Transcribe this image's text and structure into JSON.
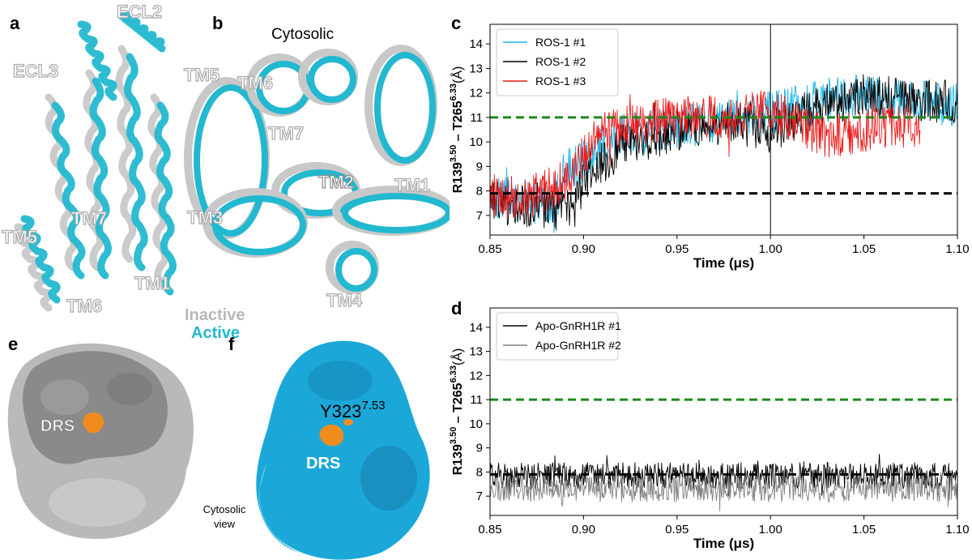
{
  "panels": {
    "a": {
      "label": "a",
      "labels": [
        "ECL2",
        "ECL3",
        "TM7",
        "TM5",
        "TM1",
        "TM6"
      ]
    },
    "b": {
      "label": "b",
      "title": "Cytosolic",
      "labels": [
        "TM5",
        "TM6",
        "TM7",
        "TM2",
        "TM1",
        "TM3",
        "TM4"
      ]
    },
    "legend": {
      "inactive": "Inactive",
      "active": "Active"
    },
    "e": {
      "label": "e",
      "site": "DRS"
    },
    "f": {
      "label": "f",
      "site": "DRS",
      "residue": "Y323",
      "residue_sup": "7.53"
    },
    "view_note": [
      "Cytosolic",
      "view"
    ],
    "c": {
      "label": "c"
    },
    "d": {
      "label": "d"
    }
  },
  "colors": {
    "active": "#22b8d0",
    "inactive": "#c8c8c8",
    "ros1_1": "#1ab6ea",
    "ros1_2": "#000000",
    "ros1_3": "#ee1c1c",
    "apo1": "#000000",
    "apo2": "#808080",
    "threshold_green": "#1a8a1a",
    "drs_orange": "#f08c1e",
    "surface_blue": "#1ba8d8",
    "surface_gray": "#8a8a8a"
  },
  "chart_data": [
    {
      "panel": "c",
      "type": "line",
      "xlabel": "Time (μs)",
      "ylabel": "R139",
      "ylabel_sup1": "3.50",
      "ylabel_mid": " – T265",
      "ylabel_sup2": "6.33",
      "ylabel_unit": "(Å)",
      "xlim": [
        0.85,
        1.1
      ],
      "ylim": [
        6.2,
        14.8
      ],
      "xticks": [
        0.85,
        0.9,
        0.95,
        1.0,
        1.05,
        1.1
      ],
      "xtick_labels": [
        "0.85",
        "0.90",
        "0.95",
        "1.00",
        "1.05",
        "1.10"
      ],
      "yticks": [
        7,
        8,
        9,
        10,
        11,
        12,
        13,
        14
      ],
      "hlines": [
        {
          "y": 11,
          "color": "green",
          "style": "dashed"
        },
        {
          "y": 7.9,
          "color": "black",
          "style": "dashed"
        }
      ],
      "vlines": [
        {
          "x": 1.0,
          "color": "black"
        }
      ],
      "legend_position": "top-left",
      "series": [
        {
          "name": "ROS-1 #1",
          "color": "#1ab6ea",
          "x": [
            0.85,
            0.87,
            0.885,
            0.89,
            0.9,
            0.92,
            0.95,
            0.98,
            1.0,
            1.02,
            1.05,
            1.07,
            1.1
          ],
          "y": [
            7.8,
            7.5,
            7.5,
            8.8,
            9.2,
            10.3,
            10.6,
            11.0,
            11.2,
            11.5,
            12.0,
            11.7,
            11.5
          ],
          "noise": 0.9
        },
        {
          "name": "ROS-1 #2",
          "color": "#000000",
          "x": [
            0.85,
            0.87,
            0.895,
            0.9,
            0.92,
            0.95,
            0.98,
            1.0,
            1.02,
            1.05,
            1.07,
            1.1
          ],
          "y": [
            7.6,
            7.4,
            7.2,
            8.5,
            9.8,
            10.5,
            10.8,
            10.4,
            11.3,
            11.8,
            11.8,
            11.6
          ],
          "noise": 0.9
        },
        {
          "name": "ROS-1 #3",
          "color": "#ee1c1c",
          "x": [
            0.85,
            0.87,
            0.89,
            0.91,
            0.95,
            0.98,
            1.0,
            1.02,
            1.03,
            1.06,
            1.08
          ],
          "y": [
            7.8,
            7.7,
            8.4,
            10.4,
            11.0,
            11.0,
            11.3,
            10.5,
            10.2,
            10.6,
            10.7
          ],
          "noise": 0.9
        }
      ]
    },
    {
      "panel": "d",
      "type": "line",
      "xlabel": "Time (μs)",
      "ylabel": "R139",
      "ylabel_sup1": "3.50",
      "ylabel_mid": " – T265",
      "ylabel_sup2": "6.33",
      "ylabel_unit": "(Å)",
      "xlim": [
        0.85,
        1.1
      ],
      "ylim": [
        6.2,
        14.8
      ],
      "xticks": [
        0.85,
        0.9,
        0.95,
        1.0,
        1.05,
        1.1
      ],
      "xtick_labels": [
        "0.85",
        "0.90",
        "0.95",
        "1.00",
        "1.05",
        "1.10"
      ],
      "yticks": [
        7,
        8,
        9,
        10,
        11,
        12,
        13,
        14
      ],
      "hlines": [
        {
          "y": 11,
          "color": "green",
          "style": "dashed"
        },
        {
          "y": 7.9,
          "color": "black",
          "style": "dashed"
        }
      ],
      "legend_position": "top-left",
      "series": [
        {
          "name": "Apo-GnRH1R #1",
          "color": "#000000",
          "x": [
            0.85,
            1.1
          ],
          "y": [
            7.85,
            7.85
          ],
          "noise": 0.55
        },
        {
          "name": "Apo-GnRH1R #2",
          "color": "#808080",
          "x": [
            0.85,
            1.1
          ],
          "y": [
            7.3,
            7.3
          ],
          "noise": 0.55
        }
      ]
    }
  ]
}
